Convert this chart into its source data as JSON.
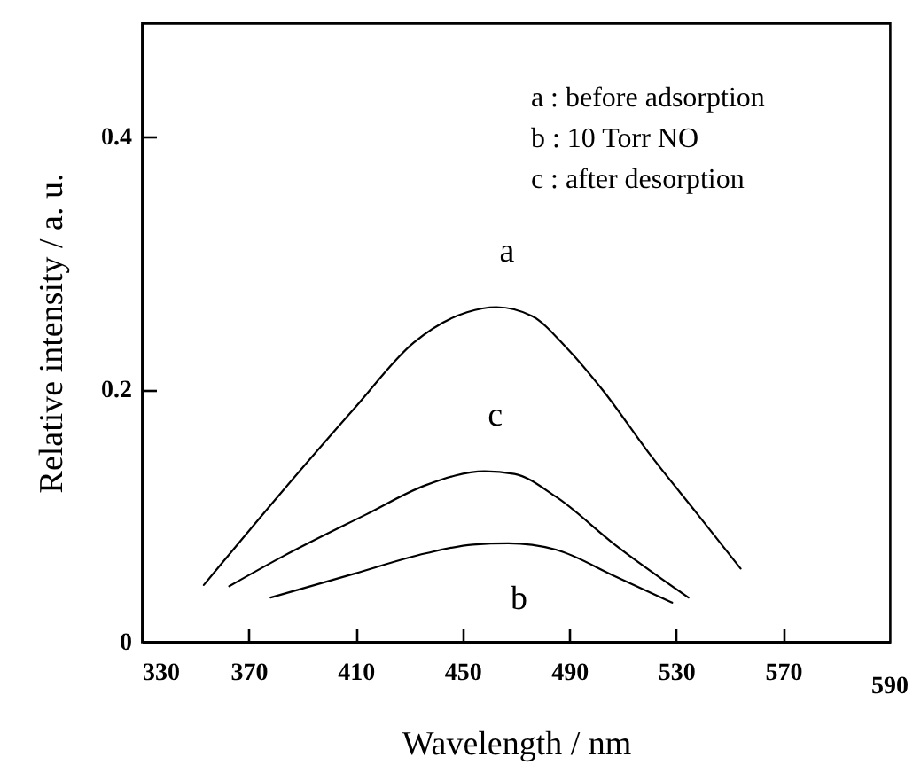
{
  "chart_data": {
    "type": "line",
    "xlabel": "Wavelength / nm",
    "ylabel": "Relative intensity / a. u.",
    "xlim": [
      330,
      610
    ],
    "xticks": [
      330,
      370,
      410,
      450,
      490,
      530,
      570
    ],
    "ylim": [
      0,
      0.49
    ],
    "yticks": [
      {
        "value": 0,
        "label": "0"
      },
      0.2,
      0.4
    ],
    "grid": false,
    "marker": "none",
    "line_style": "solid",
    "series": [
      {
        "name": "a",
        "color": "#000000",
        "x": [
          353.2,
          380.9,
          409.6,
          431.8,
          451.7,
          462.7,
          476,
          489.3,
          502.6,
          520.3,
          538,
          554.1
        ],
        "values": [
          0.045,
          0.115,
          0.185,
          0.237,
          0.261,
          0.265,
          0.258,
          0.232,
          0.199,
          0.148,
          0.101,
          0.058
        ]
      },
      {
        "name": "b",
        "color": "#000000",
        "x": [
          378.2,
          409.6,
          436.2,
          453.9,
          467.2,
          484.9,
          507,
          528.5
        ],
        "values": [
          0.035,
          0.054,
          0.07,
          0.077,
          0.078,
          0.073,
          0.052,
          0.031
        ]
      },
      {
        "name": "c",
        "color": "#000000",
        "x": [
          362.7,
          383.1,
          414.1,
          436.2,
          458.3,
          469.4,
          484.9,
          507,
          534.6
        ],
        "values": [
          0.044,
          0.068,
          0.101,
          0.124,
          0.135,
          0.133,
          0.115,
          0.077,
          0.035
        ]
      }
    ],
    "annotations": [
      "a :  before adsorption",
      "b :  10 Torr NO",
      "c :  after desorption",
      "590"
    ]
  }
}
